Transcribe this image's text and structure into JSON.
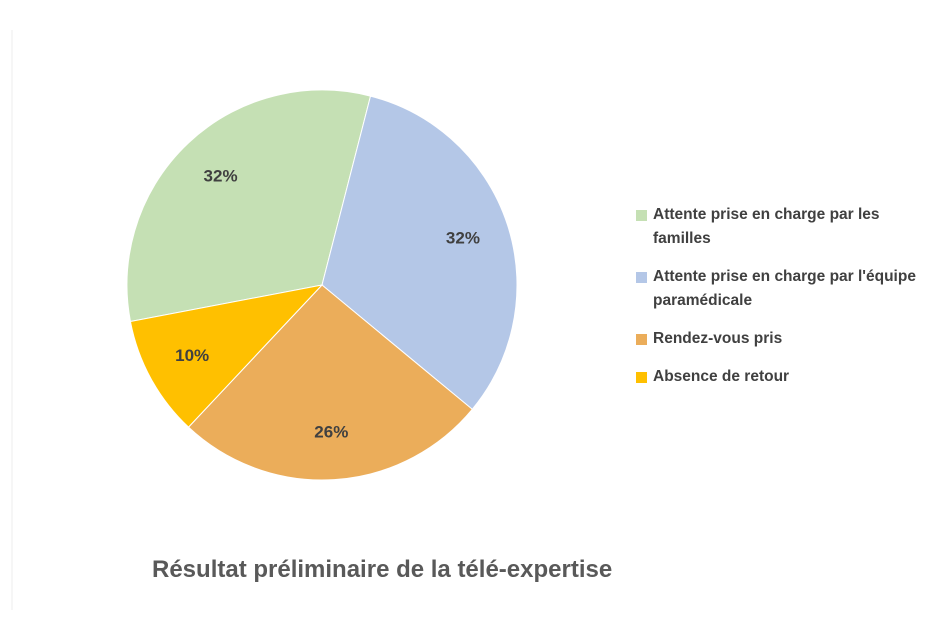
{
  "chart_data": {
    "type": "pie",
    "title": "Résultat préliminaire de la télé-expertise",
    "categories": [
      "Attente prise en charge par les familles",
      "Attente prise en charge par l'équipe paramédicale",
      "Rendez-vous pris",
      "Absence de retour"
    ],
    "values": [
      32,
      32,
      26,
      10
    ],
    "value_labels": [
      "32%",
      "32%",
      "26%",
      "10%"
    ],
    "colors": [
      "#c5e0b4",
      "#b4c7e7",
      "#ebad5a",
      "#ffc000"
    ],
    "legend": "right"
  }
}
